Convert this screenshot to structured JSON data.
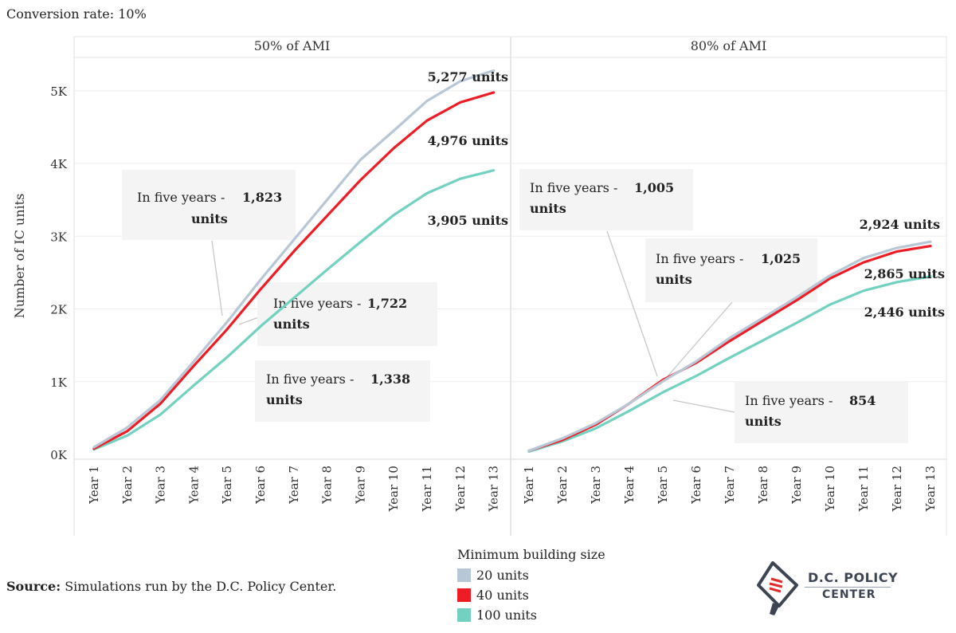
{
  "subtitle": "Conversion rate: 10%",
  "colors": {
    "20 units": "#b8c7d6",
    "40 units": "#ee1c25",
    "100 units": "#72d1c0"
  },
  "chart_data": {
    "type": "line",
    "ylabel": "Number of IC units",
    "ylim": [
      0,
      5500
    ],
    "yticks": [
      0,
      1000,
      2000,
      3000,
      4000,
      5000
    ],
    "ytick_labels": [
      "0K",
      "1K",
      "2K",
      "3K",
      "4K",
      "5K"
    ],
    "categories": [
      "Year 1",
      "Year 2",
      "Year 3",
      "Year 4",
      "Year 5",
      "Year 6",
      "Year 7",
      "Year 8",
      "Year 9",
      "Year 10",
      "Year 11",
      "Year 12",
      "Year 13"
    ],
    "legend": {
      "title": "Minimum building size",
      "entries": [
        "20 units",
        "40 units",
        "100 units"
      ],
      "position": "bottom"
    },
    "panels": [
      {
        "title": "50% of AMI",
        "series": [
          {
            "name": "20 units",
            "values": [
              100,
              370,
              750,
              1280,
              1823,
              2400,
              2950,
              3500,
              4050,
              4450,
              4860,
              5130,
              5277
            ],
            "end_label": "5,277 units"
          },
          {
            "name": "40 units",
            "values": [
              80,
              320,
              700,
              1220,
              1722,
              2270,
              2790,
              3280,
              3770,
              4210,
              4590,
              4840,
              4976
            ],
            "end_label": "4,976 units"
          },
          {
            "name": "100 units",
            "values": [
              70,
              260,
              550,
              950,
              1338,
              1760,
              2150,
              2540,
              2920,
              3290,
              3590,
              3790,
              3905
            ],
            "end_label": "3,905 units"
          }
        ],
        "annotations": [
          {
            "prefix": "In five years - ",
            "value": "1,823",
            "suffix": "units"
          },
          {
            "prefix": "In five years - ",
            "value": "1,722",
            "suffix": "units"
          },
          {
            "prefix": "In five years - ",
            "value": "1,338",
            "suffix": "units"
          }
        ]
      },
      {
        "title": "80% of AMI",
        "series": [
          {
            "name": "20 units",
            "values": [
              50,
              220,
              430,
              700,
              1005,
              1280,
              1600,
              1880,
              2160,
              2460,
              2700,
              2840,
              2924
            ],
            "end_label": "2,924 units"
          },
          {
            "name": "40 units",
            "values": [
              50,
              200,
              410,
              700,
              1025,
              1260,
              1560,
              1840,
              2120,
              2420,
              2640,
              2790,
              2865
            ],
            "end_label": "2,865 units"
          },
          {
            "name": "100 units",
            "values": [
              40,
              180,
              360,
              600,
              854,
              1080,
              1330,
              1570,
              1810,
              2060,
              2250,
              2370,
              2446
            ],
            "end_label": "2,446 units"
          }
        ],
        "annotations": [
          {
            "prefix": "In five years - ",
            "value": "1,005",
            "suffix": "units"
          },
          {
            "prefix": "In five years - ",
            "value": "1,025",
            "suffix": "units"
          },
          {
            "prefix": "In five years - ",
            "value": "854",
            "suffix": "units"
          }
        ]
      }
    ]
  },
  "source": {
    "label": "Source:",
    "text": " Simulations run by the D.C. Policy Center."
  },
  "logo": {
    "line1": "D.C. POLICY",
    "line2": "CENTER"
  }
}
